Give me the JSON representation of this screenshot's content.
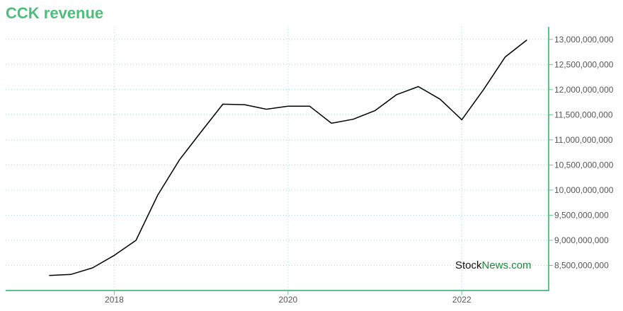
{
  "chart_data": {
    "type": "line",
    "title": "CCK revenue",
    "xlabel": "",
    "ylabel": "",
    "x_ticks": [
      {
        "label": "2018",
        "value": 2018.0
      },
      {
        "label": "2020",
        "value": 2020.0
      },
      {
        "label": "2022",
        "value": 2022.0
      }
    ],
    "xlim": [
      2016.75,
      2023.0
    ],
    "ylim": [
      8000000000,
      13250000000
    ],
    "y_ticks": [
      8500000000,
      9000000000,
      9500000000,
      10000000000,
      10500000000,
      11000000000,
      11500000000,
      12000000000,
      12500000000,
      13000000000
    ],
    "grid": true,
    "legend": "none",
    "series": [
      {
        "x": [
          2017.25,
          2017.5,
          2017.75,
          2018.0,
          2018.25,
          2018.5,
          2018.75,
          2019.0,
          2019.25,
          2019.5,
          2019.75,
          2020.0,
          2020.25,
          2020.5,
          2020.75,
          2021.0,
          2021.25,
          2021.5,
          2021.75,
          2022.0,
          2022.25,
          2022.5,
          2022.75
        ],
        "values": [
          8300000000,
          8320000000,
          8450000000,
          8700000000,
          9000000000,
          9900000000,
          10600000000,
          11160000000,
          11710000000,
          11700000000,
          11610000000,
          11670000000,
          11670000000,
          11330000000,
          11410000000,
          11580000000,
          11900000000,
          12060000000,
          11810000000,
          11400000000,
          12000000000,
          12650000000,
          12990000000
        ]
      }
    ]
  },
  "watermark": {
    "part1": "Stock",
    "part2": "News",
    "part3": ".com"
  },
  "colors": {
    "title": "#4bbf7a",
    "axis": "#5cc587",
    "line": "#000000",
    "watermark_dark": "#111111",
    "watermark_green": "#1a8a3a"
  }
}
